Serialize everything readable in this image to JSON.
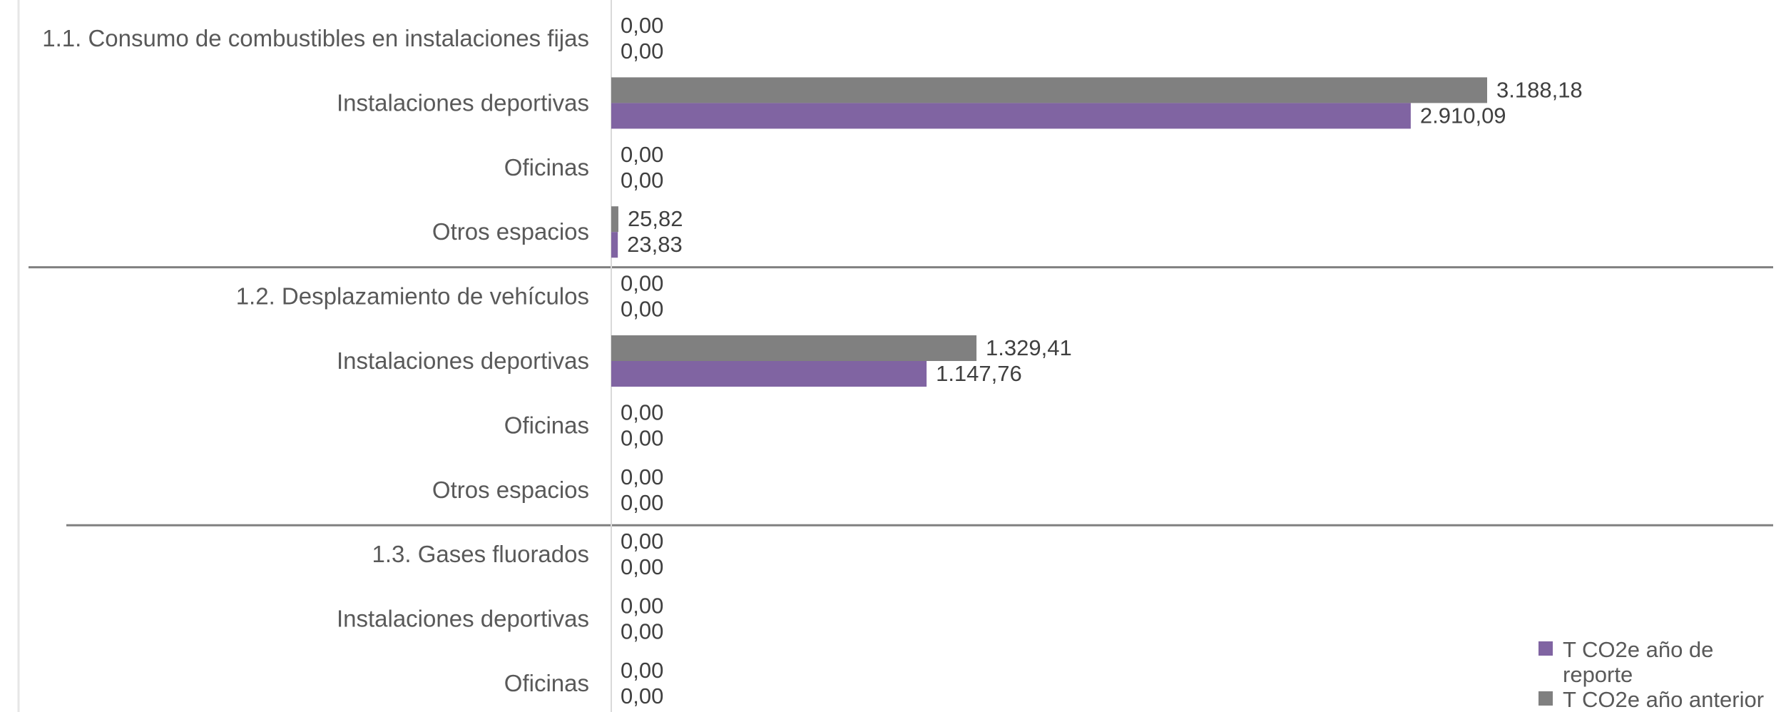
{
  "chart_data": {
    "type": "bar",
    "orientation": "horizontal",
    "categories": [
      "1.1. Consumo de combustibles en instalaciones fijas",
      "Instalaciones deportivas",
      "Oficinas",
      "Otros espacios",
      "1.2. Desplazamiento de vehículos",
      "Instalaciones deportivas",
      "Oficinas",
      "Otros espacios",
      "1.3. Gases fluorados",
      "Instalaciones deportivas",
      "Oficinas"
    ],
    "series": [
      {
        "name": "T CO2e año anterior",
        "color": "#808080",
        "values": [
          0,
          3188.18,
          0,
          25.82,
          0,
          1329.41,
          0,
          0,
          0,
          0,
          0
        ],
        "labels": [
          "0,00",
          "3.188,18",
          "0,00",
          "25,82",
          "0,00",
          "1.329,41",
          "0,00",
          "0,00",
          "0,00",
          "0,00",
          "0,00"
        ]
      },
      {
        "name": "T CO2e año de reporte",
        "color": "#8064A2",
        "values": [
          0,
          2910.09,
          0,
          23.83,
          0,
          1147.76,
          0,
          0,
          0,
          0,
          0
        ],
        "labels": [
          "0,00",
          "2.910,09",
          "0,00",
          "23,83",
          "0,00",
          "1.147,76",
          "0,00",
          "0,00",
          "0,00",
          "0,00",
          "0,00"
        ]
      }
    ],
    "legend": {
      "position": "bottom-right",
      "items": [
        {
          "series": 1,
          "text": [
            "T CO2e año de",
            "reporte"
          ]
        },
        {
          "series": 0,
          "text": [
            "T CO2e año anterior"
          ]
        }
      ]
    },
    "xlim": [
      0,
      3500
    ],
    "grid": false,
    "title": "",
    "xlabel": "",
    "ylabel": ""
  }
}
